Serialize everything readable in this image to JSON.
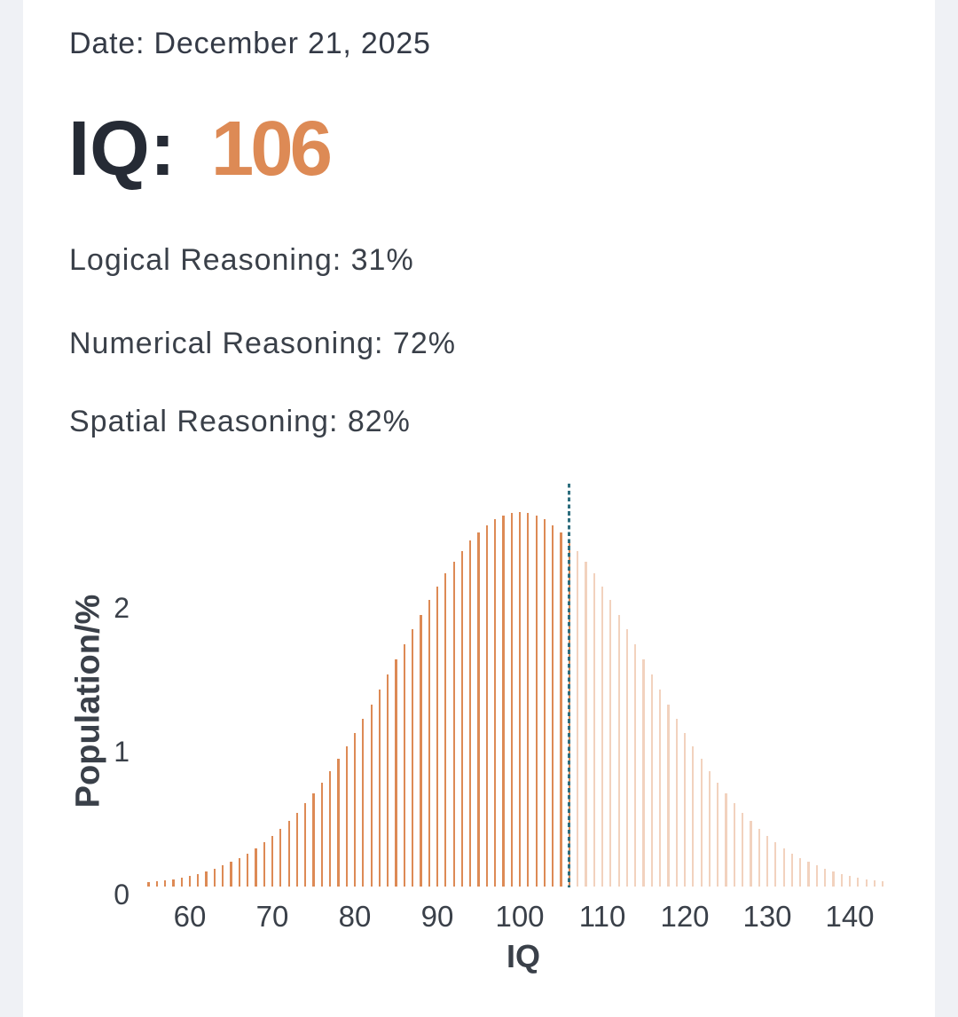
{
  "report": {
    "date_line": "Date: December 21, 2025",
    "iq_label": "IQ:",
    "iq_value": "106",
    "metrics": [
      {
        "label": "Logical Reasoning: 31%"
      },
      {
        "label": "Numerical Reasoning: 72%"
      },
      {
        "label": "Spatial Reasoning: 82%"
      }
    ]
  },
  "colors": {
    "accent_orange": "#dd8a55",
    "marker_teal": "#2e6e7e",
    "text_dark": "#343a46",
    "page_background": "#eff1f5"
  },
  "chart_data": {
    "type": "bar",
    "title": "",
    "xlabel": "IQ",
    "ylabel": "Population/%",
    "x_ticks": [
      60,
      70,
      80,
      90,
      100,
      110,
      120,
      130,
      140
    ],
    "y_ticks": [
      0,
      1,
      2
    ],
    "xlim": [
      54,
      146
    ],
    "ylim": [
      0,
      2.8
    ],
    "grid": false,
    "legend": false,
    "distribution": {
      "kind": "normal",
      "mean": 100,
      "sd": 15,
      "units": "percent_of_population_per_iq_point"
    },
    "bars_iq_min": 55,
    "bars_iq_max": 144,
    "marker_iq": 106,
    "solid_bars_up_to_iq": 106,
    "bar_color": "#dd8a55",
    "faded_bar_opacity": 0.38,
    "marker_color": "#2e6e7e"
  }
}
